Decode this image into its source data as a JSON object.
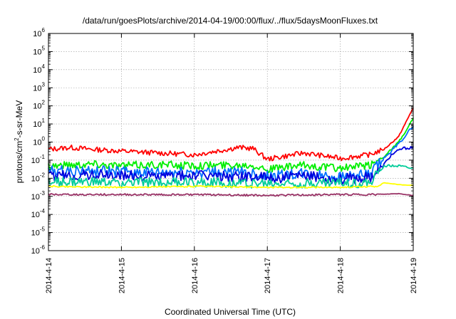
{
  "chart_data": {
    "type": "line",
    "title": "/data/run/goesPlots/archive/2014-04-19/00:00/flux/../flux/5daysMoonFluxes.txt",
    "xlabel": "Coordinated Universal Time (UTC)",
    "ylabel": "protons/cm2-s-sr-MeV",
    "ylabel_parts": {
      "before": "protons/cm",
      "sup": "2",
      "after": "-s-sr-MeV"
    },
    "yscale": "log",
    "ylim_exp": [
      -6,
      6
    ],
    "y_ticks": [
      {
        "base": "10",
        "exp": "-6"
      },
      {
        "base": "10",
        "exp": "-5"
      },
      {
        "base": "10",
        "exp": "-4"
      },
      {
        "base": "10",
        "exp": "-3"
      },
      {
        "base": "10",
        "exp": "-2"
      },
      {
        "base": "10",
        "exp": "-1"
      },
      {
        "base": "10",
        "exp": "0"
      },
      {
        "base": "10",
        "exp": "1"
      },
      {
        "base": "10",
        "exp": "2"
      },
      {
        "base": "10",
        "exp": "3"
      },
      {
        "base": "10",
        "exp": "4"
      },
      {
        "base": "10",
        "exp": "5"
      },
      {
        "base": "10",
        "exp": "6"
      }
    ],
    "x_domain_days": [
      0,
      5
    ],
    "x_ticks": [
      {
        "label": "2014-4-14",
        "day": 0
      },
      {
        "label": "2014-4-15",
        "day": 1
      },
      {
        "label": "2014-4-16",
        "day": 2
      },
      {
        "label": "2014-4-17",
        "day": 3
      },
      {
        "label": "2014-4-18",
        "day": 4
      },
      {
        "label": "2014-4-19",
        "day": 5
      }
    ],
    "grid": true,
    "series": [
      {
        "color": "#ff0000",
        "t": [
          0,
          0.3,
          0.6,
          1.0,
          1.5,
          2.0,
          2.3,
          2.6,
          2.8,
          3.0,
          3.5,
          4.0,
          4.4,
          4.6,
          4.8,
          4.9,
          5.0
        ],
        "logv": [
          -0.4,
          -0.3,
          -0.4,
          -0.5,
          -0.6,
          -0.7,
          -0.5,
          -0.3,
          -0.35,
          -0.95,
          -0.6,
          -0.9,
          -0.7,
          -0.4,
          0.3,
          1.1,
          1.9
        ],
        "amp": 0.14
      },
      {
        "color": "#00ee00",
        "t": [
          0,
          0.6,
          1.0,
          1.5,
          2.0,
          2.8,
          3.0,
          3.5,
          4.0,
          4.4,
          4.6,
          4.8,
          4.9,
          5.0
        ],
        "logv": [
          -1.3,
          -1.2,
          -1.3,
          -1.25,
          -1.3,
          -1.25,
          -1.5,
          -1.3,
          -1.45,
          -1.3,
          -0.8,
          0.0,
          0.6,
          1.3
        ],
        "amp": 0.22
      },
      {
        "color": "#0070ff",
        "t": [
          0,
          0.6,
          1.5,
          2.0,
          2.8,
          3.0,
          3.5,
          4.0,
          4.4,
          4.6,
          4.8,
          4.9,
          5.0
        ],
        "logv": [
          -1.6,
          -1.6,
          -1.7,
          -1.65,
          -1.7,
          -1.9,
          -1.75,
          -1.9,
          -1.8,
          -0.9,
          -0.1,
          0.4,
          0.9
        ],
        "amp": 0.3
      },
      {
        "color": "#0000dd",
        "t": [
          0,
          0.6,
          1.5,
          2.0,
          2.8,
          3.0,
          3.5,
          4.0,
          4.4,
          4.55,
          4.7,
          4.85,
          5.0
        ],
        "logv": [
          -1.9,
          -1.8,
          -1.9,
          -1.85,
          -1.9,
          -2.0,
          -1.9,
          -2.05,
          -1.95,
          -1.5,
          -0.7,
          -0.35,
          -0.3
        ],
        "amp": 0.3
      },
      {
        "color": "#00cc99",
        "t": [
          0,
          1.0,
          2.0,
          3.0,
          4.0,
          4.4,
          4.6,
          4.8,
          5.0
        ],
        "logv": [
          -2.2,
          -2.25,
          -2.2,
          -2.3,
          -2.25,
          -2.3,
          -1.3,
          -1.3,
          -1.45
        ],
        "amp": 0.28
      },
      {
        "color": "#ffff00",
        "t": [
          0,
          1.0,
          2.0,
          3.0,
          4.0,
          4.5,
          4.6,
          4.8,
          5.0
        ],
        "logv": [
          -2.45,
          -2.5,
          -2.45,
          -2.5,
          -2.5,
          -2.45,
          -2.25,
          -2.35,
          -2.4
        ],
        "amp": 0.04
      },
      {
        "color": "#993366",
        "t": [
          0,
          1.0,
          2.0,
          3.0,
          4.0,
          4.5,
          4.8,
          5.0
        ],
        "logv": [
          -2.9,
          -2.9,
          -2.9,
          -2.95,
          -2.9,
          -2.9,
          -2.85,
          -2.95
        ],
        "amp": 0.05
      }
    ]
  }
}
